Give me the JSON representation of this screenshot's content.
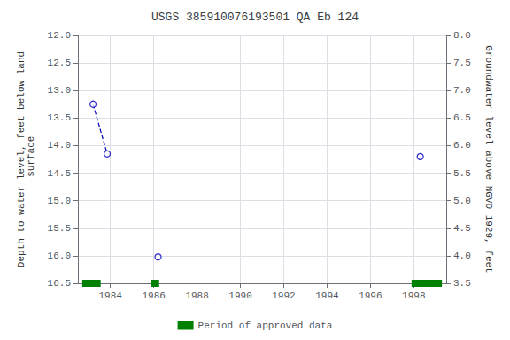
{
  "chart_data": {
    "type": "scatter",
    "title": "USGS 385910076193501 QA Eb 124",
    "y_label": "Depth to water level, feet below land\n surface",
    "y2_label": "Groundwater level above NGVD 1929, feet",
    "xlim": [
      1982.5,
      1999.5
    ],
    "xticks": [
      1984,
      1986,
      1988,
      1990,
      1992,
      1994,
      1996,
      1998
    ],
    "ylim": [
      16.5,
      12.0
    ],
    "yticks": [
      {
        "value": 12.0,
        "label": "12.0"
      },
      {
        "value": 12.5,
        "label": "12.5"
      },
      {
        "value": 13.0,
        "label": "13.0"
      },
      {
        "value": 13.5,
        "label": "13.5"
      },
      {
        "value": 14.0,
        "label": "14.0"
      },
      {
        "value": 14.5,
        "label": "14.5"
      },
      {
        "value": 15.0,
        "label": "15.0"
      },
      {
        "value": 15.5,
        "label": "15.5"
      },
      {
        "value": 16.0,
        "label": "16.0"
      },
      {
        "value": 16.5,
        "label": "16.5"
      }
    ],
    "y2lim": [
      3.5,
      8.0
    ],
    "y2ticks": [
      {
        "value": 8.0,
        "label": "8.0"
      },
      {
        "value": 7.5,
        "label": "7.5"
      },
      {
        "value": 7.0,
        "label": "7.0"
      },
      {
        "value": 6.5,
        "label": "6.5"
      },
      {
        "value": 6.0,
        "label": "6.0"
      },
      {
        "value": 5.5,
        "label": "5.5"
      },
      {
        "value": 5.0,
        "label": "5.0"
      },
      {
        "value": 4.5,
        "label": "4.5"
      },
      {
        "value": 4.0,
        "label": "4.0"
      },
      {
        "value": 3.5,
        "label": "3.5"
      }
    ],
    "grid": true,
    "legend": "bottom",
    "series": [
      {
        "type": "scatter",
        "color": "#0000bb",
        "marker": "open_circle",
        "x": [
          1983.2,
          1983.85,
          1986.2,
          1998.3
        ],
        "values": [
          13.25,
          14.15,
          16.02,
          14.2
        ]
      },
      {
        "type": "line",
        "color": "#0000bb",
        "line_style": "dashed",
        "marker": "none",
        "x": [
          1983.2,
          1983.85
        ],
        "values": [
          13.25,
          14.15
        ]
      }
    ],
    "periods": {
      "name": "Period of approved data",
      "color": "#008000",
      "ranges": [
        [
          1982.7,
          1983.55
        ],
        [
          1985.85,
          1986.25
        ],
        [
          1997.9,
          1999.3
        ]
      ]
    }
  }
}
